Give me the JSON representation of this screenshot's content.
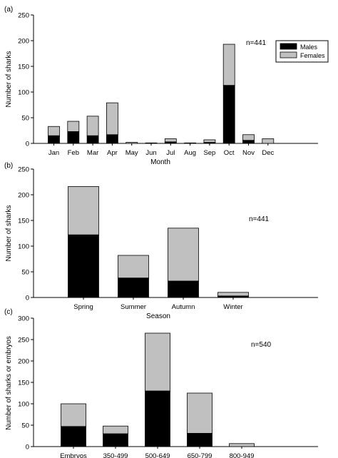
{
  "figure": {
    "colors": {
      "males": "#000000",
      "females": "#c0c0c0",
      "outline": "#000000"
    }
  },
  "chart_data": [
    {
      "type": "bar",
      "stacked": true,
      "panel_label": "(a)",
      "title": "",
      "xlabel": "Month",
      "ylabel": "Number of sharks",
      "ylim": [
        0,
        250
      ],
      "yticks": [
        0,
        50,
        100,
        150,
        200,
        250
      ],
      "annotation": "n=441",
      "legend": {
        "position": "top-right",
        "entries": [
          "Males",
          "Females"
        ]
      },
      "categories": [
        "Jan",
        "Feb",
        "Mar",
        "Apr",
        "May",
        "Jun",
        "Jul",
        "Aug",
        "Sep",
        "Oct",
        "Nov",
        "Dec"
      ],
      "series": [
        {
          "name": "Males",
          "values": [
            15,
            23,
            15,
            17,
            0,
            0,
            3,
            1,
            2,
            113,
            6,
            0
          ]
        },
        {
          "name": "Females",
          "values": [
            18,
            20,
            38,
            62,
            2,
            1,
            6,
            0,
            5,
            80,
            11,
            9
          ]
        }
      ]
    },
    {
      "type": "bar",
      "stacked": true,
      "panel_label": "(b)",
      "title": "",
      "xlabel": "Season",
      "ylabel": "Number of sharks",
      "ylim": [
        0,
        250
      ],
      "yticks": [
        0,
        50,
        100,
        150,
        200,
        250
      ],
      "annotation": "n=441",
      "categories": [
        "Spring",
        "Summer",
        "Autumn",
        "Winter"
      ],
      "series": [
        {
          "name": "Males",
          "values": [
            122,
            38,
            32,
            3
          ]
        },
        {
          "name": "Females",
          "values": [
            94,
            44,
            103,
            7
          ]
        }
      ]
    },
    {
      "type": "bar",
      "stacked": true,
      "panel_label": "(c)",
      "title": "",
      "xlabel": "",
      "ylabel": "Number of sharks or embryos",
      "ylim": [
        0,
        300
      ],
      "yticks": [
        0,
        50,
        100,
        150,
        200,
        250,
        300
      ],
      "annotation": "n=540",
      "categories": [
        "Embryos",
        "350-499",
        "500-649",
        "650-799",
        "800-949"
      ],
      "series": [
        {
          "name": "Males",
          "values": [
            47,
            30,
            130,
            31,
            0
          ]
        },
        {
          "name": "Females",
          "values": [
            53,
            18,
            135,
            94,
            7
          ]
        }
      ]
    }
  ]
}
